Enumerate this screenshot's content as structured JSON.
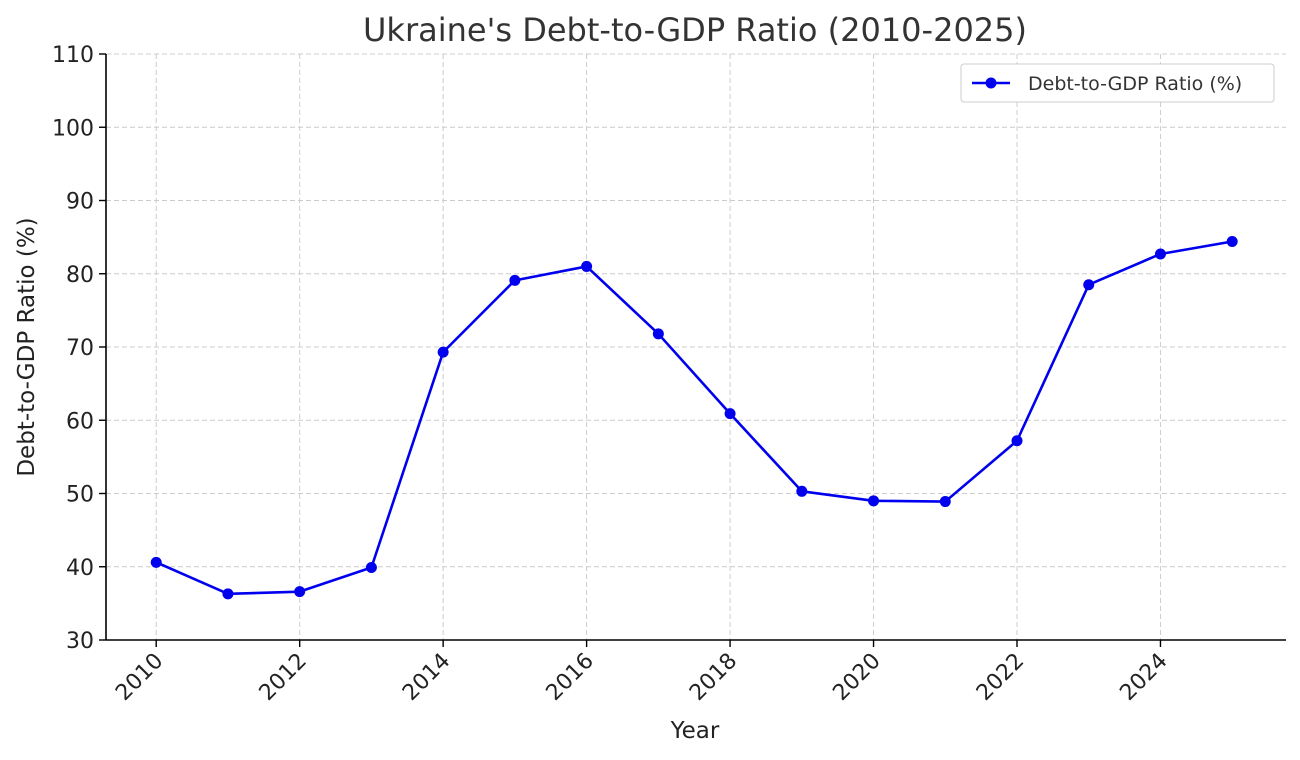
{
  "chart_data": {
    "type": "line",
    "title": "Ukraine's Debt-to-GDP Ratio (2010-2025)",
    "xlabel": "Year",
    "ylabel": "Debt-to-GDP Ratio (%)",
    "x": [
      2010,
      2011,
      2012,
      2013,
      2014,
      2015,
      2016,
      2017,
      2018,
      2019,
      2020,
      2021,
      2022,
      2023,
      2024,
      2025
    ],
    "series": [
      {
        "name": "Debt-to-GDP Ratio (%)",
        "color": "#0000ee",
        "marker": "circle",
        "values": [
          40.6,
          36.3,
          36.6,
          39.9,
          69.3,
          79.1,
          81.0,
          71.8,
          60.9,
          50.3,
          49.0,
          48.9,
          57.2,
          78.5,
          82.7,
          84.4
        ]
      }
    ],
    "xlim": [
      2009.3,
      2025.75
    ],
    "ylim": [
      30,
      110
    ],
    "xticks": [
      2010,
      2012,
      2014,
      2016,
      2018,
      2020,
      2022,
      2024
    ],
    "yticks": [
      30,
      40,
      50,
      60,
      70,
      80,
      90,
      100,
      110
    ],
    "xtick_rotation": 45,
    "grid": true,
    "grid_style": "dashed",
    "legend_position": "top-right"
  }
}
